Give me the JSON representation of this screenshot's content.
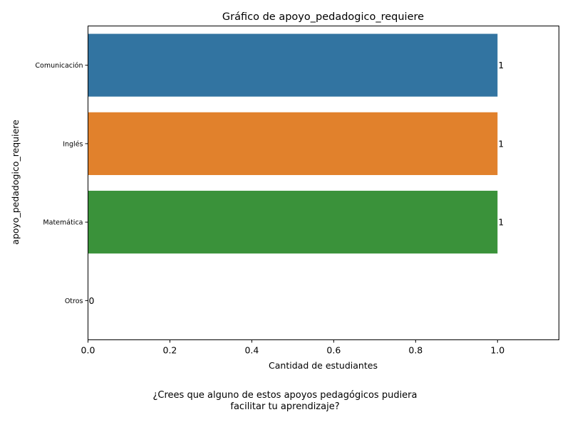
{
  "chart_data": {
    "type": "bar",
    "orientation": "horizontal",
    "title": "Gráfico de apoyo_pedadogico_requiere",
    "xlabel": "Cantidad de estudiantes",
    "ylabel": "apoyo_pedadogico_requiere",
    "categories": [
      "Comunicación",
      "Inglés",
      "Matemática",
      "Otros"
    ],
    "values": [
      1,
      1,
      1,
      0
    ],
    "data_labels": [
      "1",
      "1",
      "1",
      "0"
    ],
    "colors": [
      "#3274a1",
      "#e1812c",
      "#3a923a",
      "#c03d3e"
    ],
    "xlim": [
      0,
      1.15
    ],
    "xticks": [
      0.0,
      0.2,
      0.4,
      0.6,
      0.8,
      1.0
    ],
    "xtick_labels": [
      "0.0",
      "0.2",
      "0.4",
      "0.6",
      "0.8",
      "1.0"
    ],
    "grid": false,
    "legend": false
  },
  "caption": {
    "line1": "¿Crees que alguno de estos apoyos pedagógicos pudiera",
    "line2": "facilitar tu aprendizaje?"
  }
}
